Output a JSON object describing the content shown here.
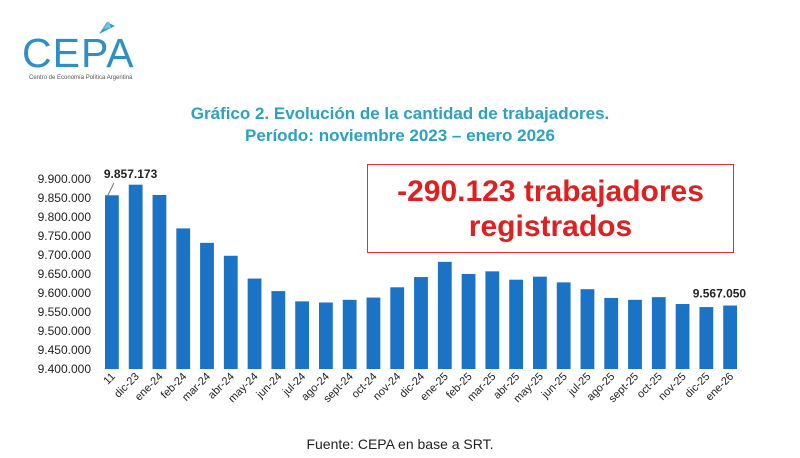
{
  "logo": {
    "name": "CEPA",
    "subtitle": "Centro de Economía Política Argentina"
  },
  "header": {
    "title_line1": "Gráfico 2. Evolución de la cantidad de trabajadores.",
    "title_line2": "Período: noviembre 2023 – enero 2026"
  },
  "callout": {
    "line1": "-290.123 trabajadores",
    "line2": "registrados"
  },
  "footer": {
    "source": "Fuente: CEPA en base a SRT."
  },
  "colors": {
    "bar": "#1a73c4",
    "title": "#2aa2c2",
    "callout": "#e01f1f"
  },
  "chart_data": {
    "type": "bar",
    "categories": [
      "11",
      "dic-23",
      "ene-24",
      "feb-24",
      "mar-24",
      "abr-24",
      "may-24",
      "jun-24",
      "jul-24",
      "ago-24",
      "sept-24",
      "oct-24",
      "nov-24",
      "dic-24",
      "ene-25",
      "feb-25",
      "mar-25",
      "abr-25",
      "may-25",
      "jun-25",
      "jul-25",
      "ago-25",
      "sept-25",
      "oct-25",
      "nov-25",
      "dic-25",
      "ene-26"
    ],
    "values": [
      9857173,
      9885000,
      9858000,
      9770000,
      9732000,
      9698000,
      9638000,
      9605000,
      9578000,
      9575000,
      9582000,
      9588000,
      9615000,
      9642000,
      9682000,
      9650000,
      9657000,
      9635000,
      9643000,
      9628000,
      9610000,
      9587000,
      9582000,
      9589000,
      9571000,
      9563000,
      9567050
    ],
    "ylim": [
      9400000,
      9900000
    ],
    "yticks": [
      "9.400.000",
      "9.450.000",
      "9.500.000",
      "9.550.000",
      "9.600.000",
      "9.650.000",
      "9.700.000",
      "9.750.000",
      "9.800.000",
      "9.850.000",
      "9.900.000"
    ],
    "ytick_values": [
      9400000,
      9450000,
      9500000,
      9550000,
      9600000,
      9650000,
      9700000,
      9750000,
      9800000,
      9850000,
      9900000
    ],
    "data_labels": [
      {
        "index": 0,
        "text": "9.857.173"
      },
      {
        "index": 26,
        "text": "9.567.050"
      }
    ],
    "grid": false,
    "legend": "none"
  }
}
